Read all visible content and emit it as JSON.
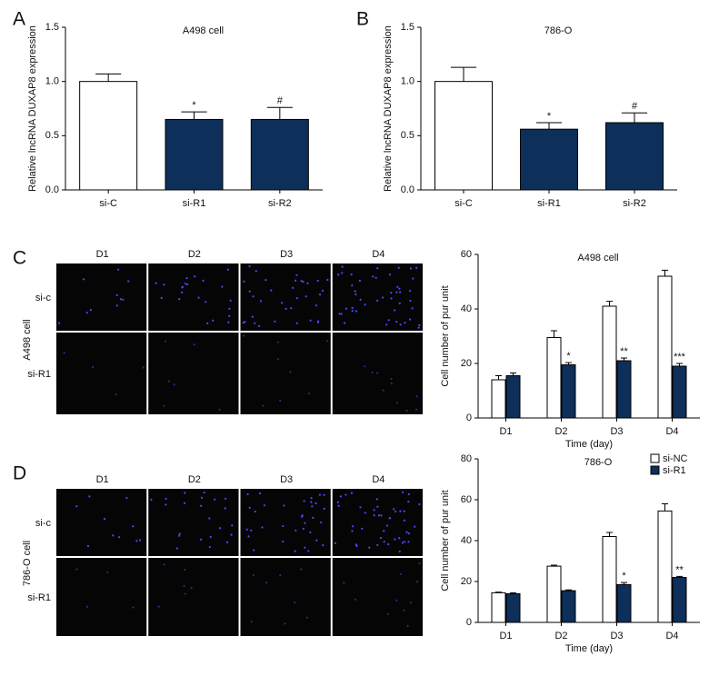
{
  "panel_letters": [
    "A",
    "B",
    "C",
    "D"
  ],
  "image_grids": [
    {
      "columns": [
        "D1",
        "D2",
        "D3",
        "D4"
      ],
      "rows": [
        "si-c",
        "si-R1"
      ],
      "row_title": "A498 cell"
    },
    {
      "columns": [
        "D1",
        "D2",
        "D3",
        "D4"
      ],
      "rows": [
        "si-c",
        "si-R1"
      ],
      "row_title": "786-O cell"
    }
  ],
  "chart_data": [
    {
      "type": "bar",
      "title": "A498 cell",
      "ylabel": "Relative lncRNA DUXAP8 expression",
      "categories": [
        "si-C",
        "si-R1",
        "si-R2"
      ],
      "series": [
        {
          "color": [
            "#ffffff",
            "#0d2f5a",
            "#0d2f5a"
          ],
          "values": [
            1.0,
            0.65,
            0.65
          ],
          "errors": [
            0.07,
            0.07,
            0.11
          ],
          "labels": [
            null,
            "*",
            "#"
          ]
        }
      ],
      "ylim": [
        0,
        1.5
      ],
      "yticks": [
        {
          "value": 0,
          "label": "0.0"
        },
        {
          "value": 0.5,
          "label": "0.5"
        },
        {
          "value": 1,
          "label": "1.0"
        },
        {
          "value": 1.5,
          "label": "1.5"
        }
      ]
    },
    {
      "type": "bar",
      "title": "786-O",
      "ylabel": "Relative lncRNA DUXAP8 expression",
      "categories": [
        "si-C",
        "si-R1",
        "si-R2"
      ],
      "series": [
        {
          "color": [
            "#ffffff",
            "#0d2f5a",
            "#0d2f5a"
          ],
          "values": [
            1.0,
            0.56,
            0.62
          ],
          "errors": [
            0.13,
            0.06,
            0.09
          ],
          "labels": [
            null,
            "*",
            "#"
          ]
        }
      ],
      "ylim": [
        0,
        1.5
      ],
      "yticks": [
        {
          "value": 0,
          "label": "0.0"
        },
        {
          "value": 0.5,
          "label": "0.5"
        },
        {
          "value": 1,
          "label": "1.0"
        },
        {
          "value": 1.5,
          "label": "1.5"
        }
      ]
    },
    {
      "type": "bar",
      "title": "A498 cell",
      "ylabel": "Cell number of pur unit",
      "xlabel": "Time (day)",
      "categories": [
        "D1",
        "D2",
        "D3",
        "D4"
      ],
      "series": [
        {
          "color": "#ffffff",
          "values": [
            14,
            29.5,
            41,
            52
          ],
          "errors": [
            1.5,
            2.5,
            1.8,
            2.2
          ],
          "labels": [
            null,
            null,
            null,
            null
          ]
        },
        {
          "color": "#0d2f5a",
          "values": [
            15.5,
            19.5,
            21,
            19
          ],
          "errors": [
            1,
            0.8,
            1,
            1
          ],
          "labels": [
            null,
            "*",
            "**",
            "***"
          ]
        }
      ],
      "ylim": [
        0,
        60
      ],
      "yticks": [
        0,
        20,
        40,
        60
      ]
    },
    {
      "type": "bar",
      "title": "786-O",
      "ylabel": "Cell number of pur unit",
      "xlabel": "Time (day)",
      "categories": [
        "D1",
        "D2",
        "D3",
        "D4"
      ],
      "series": [
        {
          "name": "si-NC",
          "color": "#ffffff",
          "values": [
            14.5,
            27.5,
            42,
            54.5
          ],
          "errors": [
            0.3,
            0.5,
            2,
            3.5
          ],
          "labels": [
            null,
            null,
            null,
            null
          ]
        },
        {
          "name": "si-R1",
          "color": "#0d2f5a",
          "values": [
            14,
            15.5,
            18.5,
            22
          ],
          "errors": [
            0.5,
            0.4,
            1,
            0.5
          ],
          "labels": [
            null,
            null,
            "*",
            "**"
          ]
        }
      ],
      "ylim": [
        0,
        80
      ],
      "yticks": [
        0,
        20,
        40,
        60,
        80
      ],
      "legend": "top-right"
    }
  ]
}
